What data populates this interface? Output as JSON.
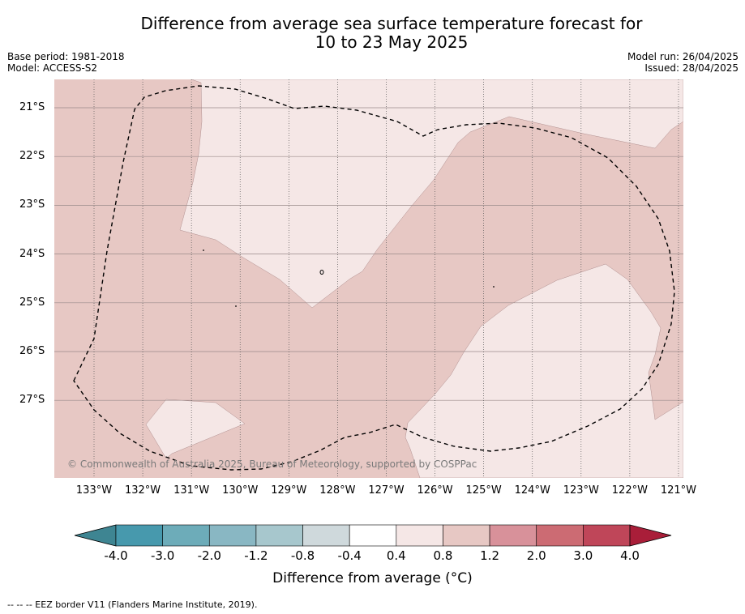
{
  "title": {
    "line1": "Difference from average sea surface temperature forecast for",
    "line2": "10 to 23 May 2025"
  },
  "meta_left": {
    "base_period": "Base period: 1981-2018",
    "model": "Model: ACCESS-S2"
  },
  "meta_right": {
    "model_run": "Model run: 26/04/2025",
    "issued": "Issued: 28/04/2025"
  },
  "map": {
    "lat_labels": [
      "21°S",
      "22°S",
      "23°S",
      "24°S",
      "25°S",
      "26°S",
      "27°S"
    ],
    "lon_labels": [
      "133°W",
      "132°W",
      "131°W",
      "130°W",
      "129°W",
      "128°W",
      "127°W",
      "126°W",
      "125°W",
      "124°W",
      "123°W",
      "122°W",
      "121°W"
    ],
    "copyright": "© Commonwealth of Australia 2025, Bureau of Meteorology, supported by COSPPac",
    "fill_colors": {
      "anomaly_0_4_to_0_8": "#f5e7e6",
      "anomaly_0_8_to_1_2": "#e7c8c4"
    },
    "eez_border_style": "dashed"
  },
  "colorbar": {
    "ticks": [
      "-4.0",
      "-3.0",
      "-2.0",
      "-1.2",
      "-0.8",
      "-0.4",
      "0.4",
      "0.8",
      "1.2",
      "2.0",
      "3.0",
      "4.0"
    ],
    "colors": [
      "#4799ad",
      "#6dacb9",
      "#89b7c3",
      "#a7c7cd",
      "#cfd9dc",
      "#ffffff",
      "#f5e7e6",
      "#e7c8c4",
      "#d8919a",
      "#cc6b73",
      "#bf4659"
    ],
    "under_color": "#3e8592",
    "over_color": "#a91e39",
    "title": "Difference from average (°C)"
  },
  "footer": "--  --  -- EEZ border V11 (Flanders Marine Institute, 2019)."
}
